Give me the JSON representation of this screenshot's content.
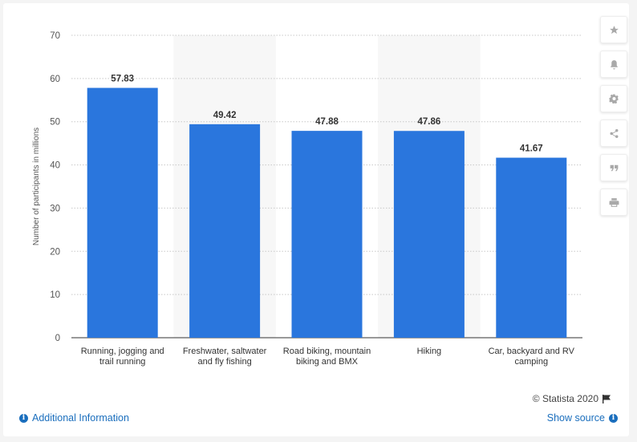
{
  "chart_data": {
    "type": "bar",
    "categories": [
      [
        "Running, jogging and",
        "trail running"
      ],
      [
        "Freshwater, saltwater",
        "and fly fishing"
      ],
      [
        "Road biking, mountain",
        "biking and BMX"
      ],
      [
        "Hiking"
      ],
      [
        "Car, backyard and RV",
        "camping"
      ]
    ],
    "values": [
      57.83,
      49.42,
      47.88,
      47.86,
      41.67
    ],
    "value_labels": [
      "57.83",
      "49.42",
      "47.88",
      "47.86",
      "41.67"
    ],
    "ylabel": "Number of participants in millions",
    "ylim": [
      0,
      70
    ],
    "yticks": [
      0,
      10,
      20,
      30,
      40,
      50,
      60,
      70
    ],
    "grid": true,
    "bar_color": "#2a76dd",
    "alt_band_color": "#f7f7f7"
  },
  "footer": {
    "credit": "© Statista 2020",
    "additional_info": "Additional Information",
    "show_source": "Show source"
  },
  "toolbar": {
    "icons": [
      "star-icon",
      "bell-icon",
      "gear-icon",
      "share-icon",
      "quote-icon",
      "print-icon"
    ]
  }
}
